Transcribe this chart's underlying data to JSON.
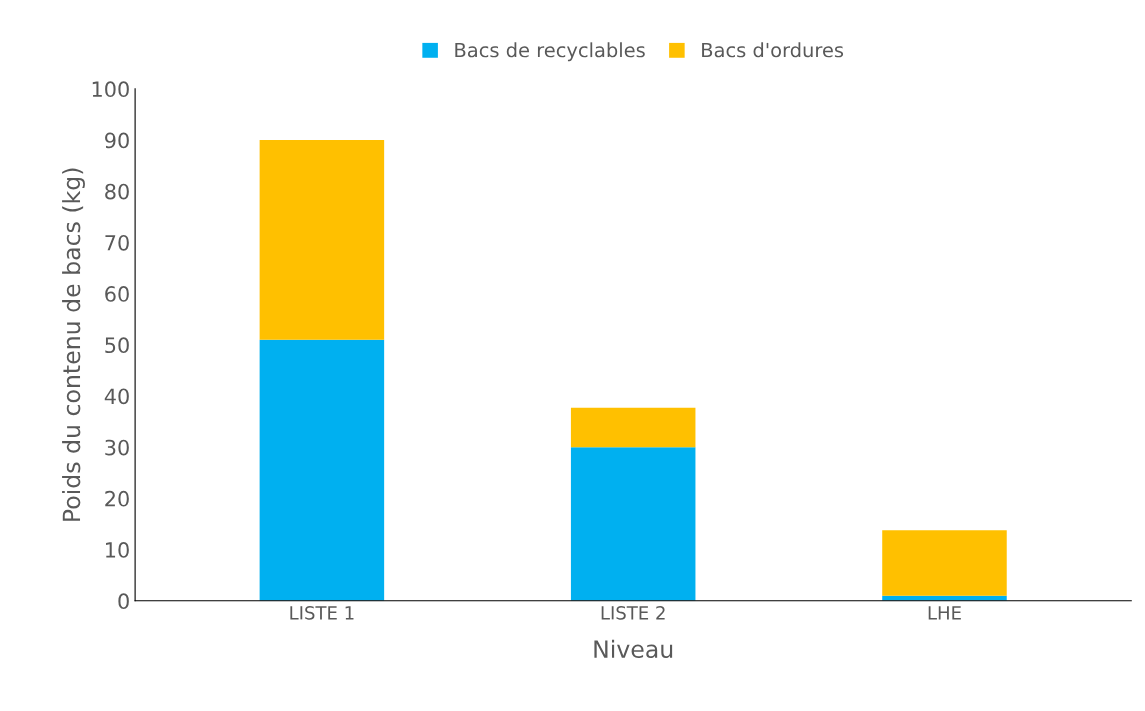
{
  "chart_data": {
    "type": "bar",
    "stacked": true,
    "xlabel": "Niveau",
    "ylabel": "Poids du contenu de bacs (kg)",
    "categories": [
      "LISTE 1",
      "LISTE 2",
      "LHE"
    ],
    "series": [
      {
        "name": "Bacs de recyclables",
        "color": "#00b0f0",
        "values": [
          51,
          30,
          1
        ]
      },
      {
        "name": "Bacs d'ordures",
        "color": "#ffc000",
        "values": [
          39,
          7.7,
          12.8
        ]
      }
    ],
    "ylim": [
      0,
      100
    ],
    "yticks": [
      0,
      10,
      20,
      30,
      40,
      50,
      60,
      70,
      80,
      90,
      100
    ],
    "grid": false,
    "legend": "top"
  }
}
